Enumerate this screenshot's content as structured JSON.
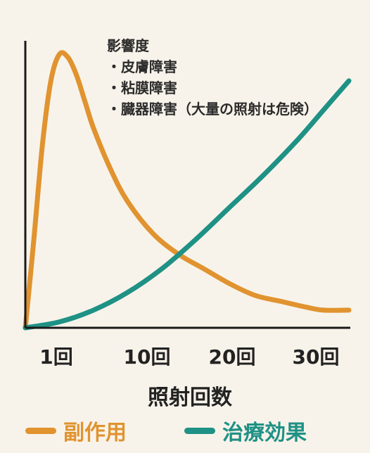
{
  "chart_data": {
    "type": "line",
    "xlabel": "照射回数",
    "ylabel": "",
    "xticks": [
      "1回",
      "10回",
      "20回",
      "30回"
    ],
    "xlim": [
      0,
      38
    ],
    "ylim": [
      0,
      100
    ],
    "grid": false,
    "legend_position": "bottom",
    "annotation": {
      "heading": "影響度",
      "items": [
        "皮膚障害",
        "粘膜障害",
        "臓器障害（大量の照射は危険）"
      ]
    },
    "series": [
      {
        "name": "副作用",
        "color": "#e0932f",
        "x": [
          0,
          1,
          2,
          3,
          4,
          5,
          6,
          7,
          8,
          10,
          12,
          15,
          18,
          21,
          24,
          27,
          30,
          33,
          35,
          38
        ],
        "y": [
          0,
          30,
          62,
          84,
          93,
          92,
          86,
          77,
          68,
          54,
          43,
          32,
          25,
          20,
          15,
          11,
          9,
          7,
          6,
          6
        ]
      },
      {
        "name": "治療効果",
        "color": "#1f9185",
        "x": [
          0,
          4,
          8,
          12,
          16,
          20,
          24,
          28,
          32,
          35,
          38
        ],
        "y": [
          0,
          2,
          6,
          12,
          20,
          30,
          41,
          52,
          64,
          74,
          84
        ]
      }
    ]
  }
}
